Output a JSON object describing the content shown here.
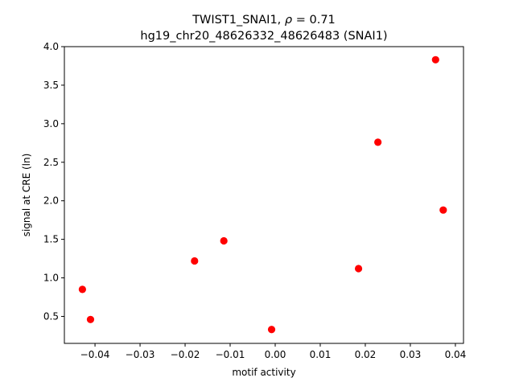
{
  "chart_data": {
    "type": "scatter",
    "title_line1_prefix": "TWIST1_SNAI1, ",
    "title_rho_symbol": "ρ",
    "title_rho_rest": " = 0.71",
    "title_line2": "hg19_chr20_48626332_48626483 (SNAI1)",
    "xlabel": "motif activity",
    "ylabel": "signal at CRE (ln)",
    "xlim": [
      -0.0468,
      0.0418
    ],
    "ylim": [
      0.15,
      4.0
    ],
    "xticks": [
      -0.04,
      -0.03,
      -0.02,
      -0.01,
      0.0,
      0.01,
      0.02,
      0.03,
      0.04
    ],
    "xtick_labels": [
      "−0.04",
      "−0.03",
      "−0.02",
      "−0.01",
      "0.00",
      "0.01",
      "0.02",
      "0.03",
      "0.04"
    ],
    "yticks": [
      0.5,
      1.0,
      1.5,
      2.0,
      2.5,
      3.0,
      3.5,
      4.0
    ],
    "ytick_labels": [
      "0.5",
      "1.0",
      "1.5",
      "2.0",
      "2.5",
      "3.0",
      "3.5",
      "4.0"
    ],
    "grid": false,
    "legend": "none",
    "marker_color": "#ff0000",
    "points": [
      {
        "x": -0.0428,
        "y": 0.85
      },
      {
        "x": -0.041,
        "y": 0.46
      },
      {
        "x": -0.0179,
        "y": 1.22
      },
      {
        "x": -0.0114,
        "y": 1.48
      },
      {
        "x": -0.0008,
        "y": 0.33
      },
      {
        "x": 0.0185,
        "y": 1.12
      },
      {
        "x": 0.0228,
        "y": 2.76
      },
      {
        "x": 0.0356,
        "y": 3.83
      },
      {
        "x": 0.0373,
        "y": 1.88
      }
    ]
  }
}
